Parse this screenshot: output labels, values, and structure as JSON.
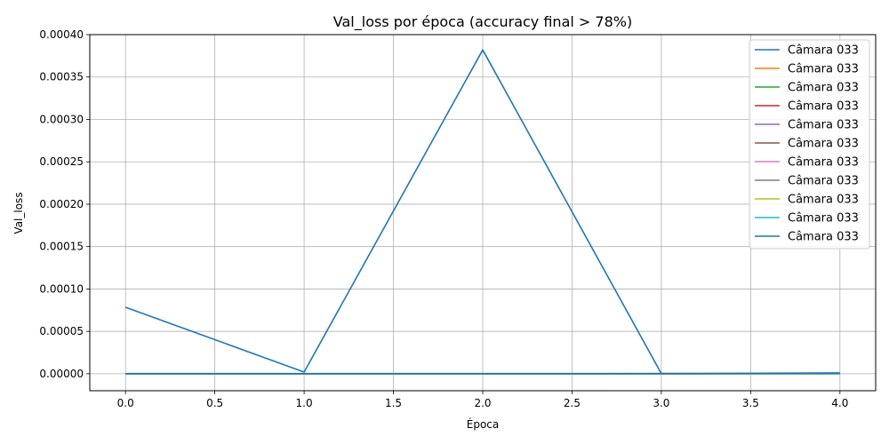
{
  "chart_data": {
    "type": "line",
    "title": "Val_loss por época (accuracy final > 78%)",
    "xlabel": "Época",
    "ylabel": "Val_loss",
    "xlim": [
      -0.2,
      4.2
    ],
    "ylim": [
      -2e-05,
      0.0004
    ],
    "x_ticks": [
      "0.0",
      "0.5",
      "1.0",
      "1.5",
      "2.0",
      "2.5",
      "3.0",
      "3.5",
      "4.0"
    ],
    "y_ticks": [
      "0.00000",
      "0.00005",
      "0.00010",
      "0.00015",
      "0.00020",
      "0.00025",
      "0.00030",
      "0.00035",
      "0.00040"
    ],
    "grid": true,
    "legend_position": "top-right",
    "x": [
      0,
      1,
      2,
      3,
      4
    ],
    "series": [
      {
        "name": "Câmara 033",
        "color": "#1f77b4",
        "values": [
          7.85e-05,
          2e-06,
          0.000382,
          2e-07,
          2e-07
        ]
      },
      {
        "name": "Câmara 033",
        "color": "#ff7f0e",
        "values": [
          1e-07,
          1e-07,
          1e-07,
          1e-07,
          1e-07
        ]
      },
      {
        "name": "Câmara 033",
        "color": "#2ca02c",
        "values": [
          1e-07,
          1e-07,
          1e-07,
          1e-07,
          1e-07
        ]
      },
      {
        "name": "Câmara 033",
        "color": "#d62728",
        "values": [
          1e-07,
          1e-07,
          1e-07,
          1e-07,
          1e-07
        ]
      },
      {
        "name": "Câmara 033",
        "color": "#9467bd",
        "values": [
          1e-07,
          1e-07,
          1e-07,
          1e-07,
          1e-07
        ]
      },
      {
        "name": "Câmara 033",
        "color": "#8c564b",
        "values": [
          1e-07,
          1e-07,
          1e-07,
          1e-07,
          1e-07
        ]
      },
      {
        "name": "Câmara 033",
        "color": "#e377c2",
        "values": [
          1e-07,
          1e-07,
          1e-07,
          1e-07,
          1e-07
        ]
      },
      {
        "name": "Câmara 033",
        "color": "#7f7f7f",
        "values": [
          1e-07,
          1e-07,
          1e-07,
          1e-07,
          1e-07
        ]
      },
      {
        "name": "Câmara 033",
        "color": "#bcbd22",
        "values": [
          1e-07,
          1e-07,
          1e-07,
          1e-07,
          1e-07
        ]
      },
      {
        "name": "Câmara 033",
        "color": "#17becf",
        "values": [
          3e-07,
          3e-07,
          3e-07,
          3e-07,
          3e-07
        ]
      },
      {
        "name": "Câmara 033",
        "color": "#1f77b4",
        "values": [
          1e-07,
          1e-07,
          1e-07,
          2e-07,
          1e-06
        ]
      }
    ]
  }
}
